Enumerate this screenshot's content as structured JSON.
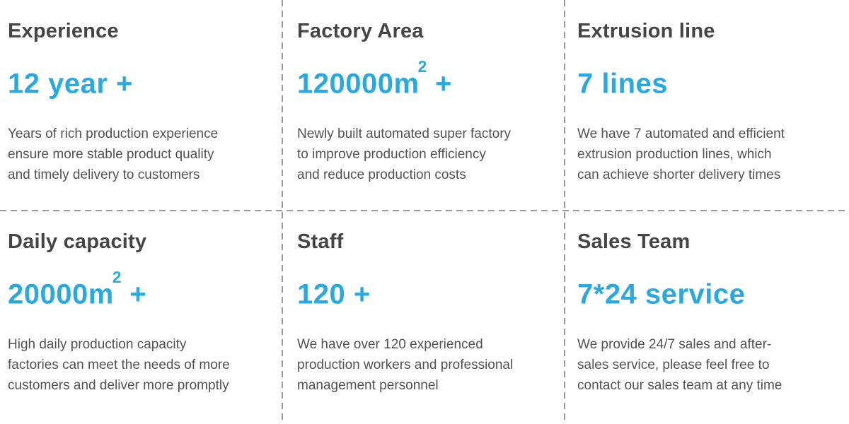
{
  "colors": {
    "accent": "#29a9e0",
    "heading": "#454545",
    "body_text": "#525252",
    "divider": "#9a9a9a"
  },
  "stats": [
    {
      "title": "Experience",
      "value": "12 year +",
      "value_sup": null,
      "value_after": null,
      "description": "Years of rich production experience\nensure more stable product quality\nand timely delivery to customers"
    },
    {
      "title": "Factory Area",
      "value": "120000m",
      "value_sup": "2",
      "value_after": " +",
      "description": "Newly built automated super factory\nto improve production efficiency\nand reduce production costs"
    },
    {
      "title": "Extrusion line",
      "value": "7 lines",
      "value_sup": null,
      "value_after": null,
      "description": "We have 7 automated and efficient\nextrusion production lines, which\ncan achieve shorter delivery times"
    },
    {
      "title": "Daily capacity",
      "value": "20000m",
      "value_sup": "2",
      "value_after": " +",
      "description": "High daily production capacity\nfactories can meet the needs of more\ncustomers and deliver more promptly"
    },
    {
      "title": "Staff",
      "value": "120 +",
      "value_sup": null,
      "value_after": null,
      "description": "We have over 120 experienced\nproduction workers and professional\nmanagement personnel"
    },
    {
      "title": "Sales Team",
      "value": "7*24 service",
      "value_sup": null,
      "value_after": null,
      "description": "We provide 24/7 sales and after-\nsales service, please feel free to\ncontact our sales team at any time"
    }
  ]
}
